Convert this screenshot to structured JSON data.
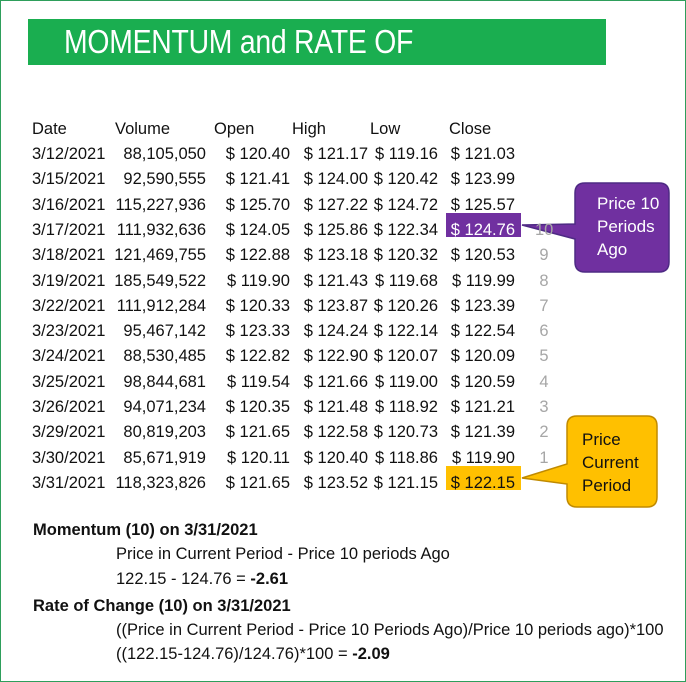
{
  "title": "MOMENTUM and RATE OF CHANGE",
  "columns": [
    "Date",
    "Volume",
    "Open",
    "High",
    "Low",
    "Close"
  ],
  "rows": [
    {
      "date": "3/12/2021",
      "volume": "88,105,050",
      "open": "$ 120.40",
      "high": "$ 121.17",
      "low": "$ 119.16",
      "close": "$ 121.03",
      "index": ""
    },
    {
      "date": "3/15/2021",
      "volume": "92,590,555",
      "open": "$ 121.41",
      "high": "$ 124.00",
      "low": "$ 120.42",
      "close": "$ 123.99",
      "index": ""
    },
    {
      "date": "3/16/2021",
      "volume": "115,227,936",
      "open": "$ 125.70",
      "high": "$ 127.22",
      "low": "$ 124.72",
      "close": "$ 125.57",
      "index": ""
    },
    {
      "date": "3/17/2021",
      "volume": "111,932,636",
      "open": "$ 124.05",
      "high": "$ 125.86",
      "low": "$ 122.34",
      "close": "$ 124.76",
      "index": "10"
    },
    {
      "date": "3/18/2021",
      "volume": "121,469,755",
      "open": "$ 122.88",
      "high": "$ 123.18",
      "low": "$ 120.32",
      "close": "$ 120.53",
      "index": "9"
    },
    {
      "date": "3/19/2021",
      "volume": "185,549,522",
      "open": "$ 119.90",
      "high": "$ 121.43",
      "low": "$ 119.68",
      "close": "$ 119.99",
      "index": "8"
    },
    {
      "date": "3/22/2021",
      "volume": "111,912,284",
      "open": "$ 120.33",
      "high": "$ 123.87",
      "low": "$ 120.26",
      "close": "$ 123.39",
      "index": "7"
    },
    {
      "date": "3/23/2021",
      "volume": "95,467,142",
      "open": "$ 123.33",
      "high": "$ 124.24",
      "low": "$ 122.14",
      "close": "$ 122.54",
      "index": "6"
    },
    {
      "date": "3/24/2021",
      "volume": "88,530,485",
      "open": "$ 122.82",
      "high": "$ 122.90",
      "low": "$ 120.07",
      "close": "$ 120.09",
      "index": "5"
    },
    {
      "date": "3/25/2021",
      "volume": "98,844,681",
      "open": "$ 119.54",
      "high": "$ 121.66",
      "low": "$ 119.00",
      "close": "$ 120.59",
      "index": "4"
    },
    {
      "date": "3/26/2021",
      "volume": "94,071,234",
      "open": "$ 120.35",
      "high": "$ 121.48",
      "low": "$ 118.92",
      "close": "$ 121.21",
      "index": "3"
    },
    {
      "date": "3/29/2021",
      "volume": "80,819,203",
      "open": "$ 121.65",
      "high": "$ 122.58",
      "low": "$ 120.73",
      "close": "$ 121.39",
      "index": "2"
    },
    {
      "date": "3/30/2021",
      "volume": "85,671,919",
      "open": "$ 120.11",
      "high": "$ 120.40",
      "low": "$ 118.86",
      "close": "$ 119.90",
      "index": "1"
    },
    {
      "date": "3/31/2021",
      "volume": "118,323,826",
      "open": "$ 121.65",
      "high": "$ 123.52",
      "low": "$ 121.15",
      "close": "$ 122.15",
      "index": ""
    }
  ],
  "callout_past": {
    "lines": [
      "Price 10",
      "Periods",
      "Ago"
    ]
  },
  "callout_current": {
    "lines": [
      "Price",
      "Current",
      "Period"
    ]
  },
  "momentum": {
    "title": "Momentum (10) on 3/31/2021",
    "formula": "Price in Current Period - Price 10 periods Ago",
    "calc_prefix": "122.15 - 124.76 = ",
    "result": "-2.61"
  },
  "roc": {
    "title": "Rate of Change (10) on 3/31/2021",
    "formula": "((Price in Current Period - Price 10 Periods Ago)/Price 10 periods ago)*100",
    "calc_prefix": "((122.15-124.76)/124.76)*100 =  ",
    "result": "-2.09"
  },
  "colors": {
    "title_bg": "#1aae50",
    "past_highlight": "#7030a0",
    "current_highlight": "#ffc000",
    "index_text": "#a6a6a6"
  }
}
